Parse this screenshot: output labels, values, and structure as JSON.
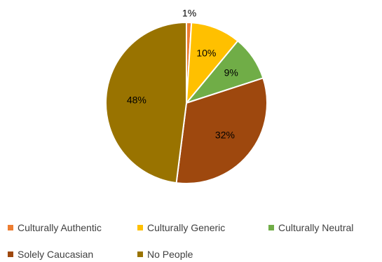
{
  "chart_data": {
    "type": "pie",
    "title": "",
    "categories": [
      "Culturally Authentic",
      "Culturally Generic",
      "Culturally Neutral",
      "Solely Caucasian",
      "No People"
    ],
    "values": [
      1,
      10,
      9,
      32,
      48
    ],
    "data_labels": [
      "1%",
      "10%",
      "9%",
      "32%",
      "48%"
    ],
    "colors": [
      "#ED7D31",
      "#FFC000",
      "#70AD47",
      "#9E480E",
      "#997300"
    ],
    "legend_position": "bottom",
    "legend": [
      "Culturally Authentic",
      "Culturally Generic",
      "Culturally Neutral",
      "Solely Caucasian",
      "No People"
    ]
  }
}
